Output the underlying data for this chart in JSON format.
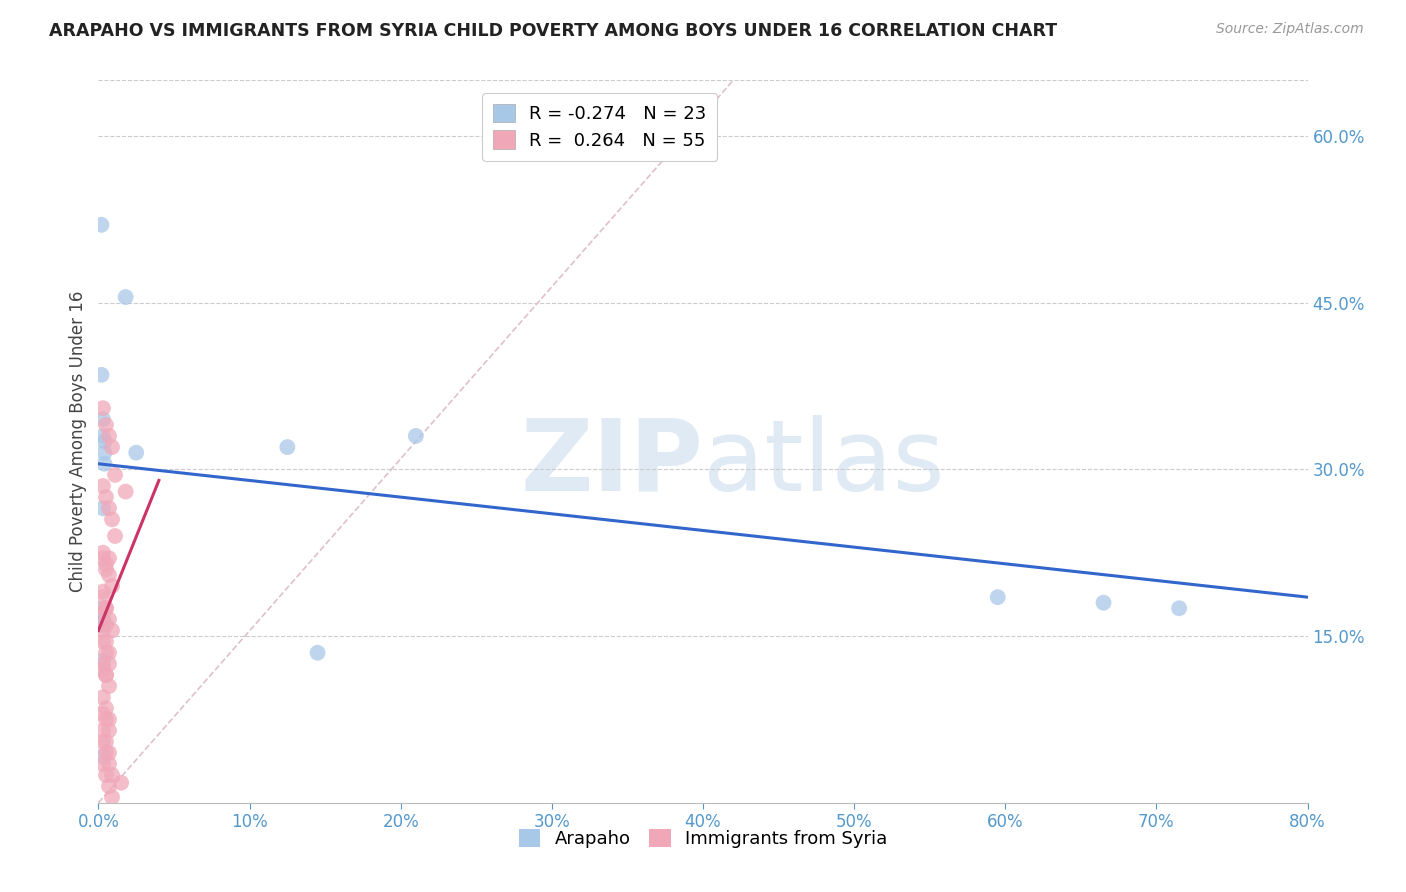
{
  "title": "ARAPAHO VS IMMIGRANTS FROM SYRIA CHILD POVERTY AMONG BOYS UNDER 16 CORRELATION CHART",
  "source": "Source: ZipAtlas.com",
  "ylabel": "Child Poverty Among Boys Under 16",
  "legend_labels": [
    "Arapaho",
    "Immigrants from Syria"
  ],
  "arapaho_R": -0.274,
  "arapaho_N": 23,
  "syria_R": 0.264,
  "syria_N": 55,
  "arapaho_color": "#a8c8e8",
  "syria_color": "#f0a8b8",
  "arapaho_line_color": "#3366cc",
  "syria_line_color": "#cc3366",
  "diagonal_color": "#e0c0c8",
  "xlim": [
    0.0,
    0.8
  ],
  "ylim": [
    0.0,
    0.65
  ],
  "xticks": [
    0.0,
    0.1,
    0.2,
    0.3,
    0.4,
    0.5,
    0.6,
    0.7,
    0.8
  ],
  "yticks_right": [
    0.15,
    0.3,
    0.45,
    0.6
  ],
  "watermark_zip": "ZIP",
  "watermark_atlas": "atlas",
  "arapaho_x": [
    0.002,
    0.018,
    0.002,
    0.003,
    0.003,
    0.004,
    0.004,
    0.025,
    0.004,
    0.125,
    0.21,
    0.003,
    0.003,
    0.003,
    0.003,
    0.003,
    0.003,
    0.003,
    0.595,
    0.665,
    0.715,
    0.003,
    0.145
  ],
  "arapaho_y": [
    0.52,
    0.455,
    0.385,
    0.345,
    0.33,
    0.325,
    0.315,
    0.315,
    0.305,
    0.32,
    0.33,
    0.265,
    0.175,
    0.165,
    0.165,
    0.16,
    0.16,
    0.128,
    0.185,
    0.18,
    0.175,
    0.042,
    0.135
  ],
  "syria_x": [
    0.003,
    0.005,
    0.007,
    0.009,
    0.011,
    0.003,
    0.005,
    0.007,
    0.009,
    0.011,
    0.003,
    0.005,
    0.007,
    0.009,
    0.003,
    0.005,
    0.007,
    0.009,
    0.003,
    0.005,
    0.007,
    0.003,
    0.005,
    0.007,
    0.003,
    0.005,
    0.007,
    0.003,
    0.005,
    0.007,
    0.003,
    0.005,
    0.007,
    0.003,
    0.005,
    0.007,
    0.003,
    0.005,
    0.007,
    0.009,
    0.003,
    0.005,
    0.003,
    0.005,
    0.003,
    0.005,
    0.003,
    0.005,
    0.007,
    0.003,
    0.005,
    0.007,
    0.009,
    0.015,
    0.018
  ],
  "syria_y": [
    0.355,
    0.34,
    0.33,
    0.32,
    0.295,
    0.285,
    0.275,
    0.265,
    0.255,
    0.24,
    0.225,
    0.215,
    0.205,
    0.195,
    0.185,
    0.175,
    0.165,
    0.155,
    0.145,
    0.135,
    0.125,
    0.155,
    0.145,
    0.135,
    0.125,
    0.115,
    0.105,
    0.095,
    0.085,
    0.075,
    0.19,
    0.175,
    0.22,
    0.065,
    0.055,
    0.045,
    0.035,
    0.025,
    0.015,
    0.005,
    0.22,
    0.21,
    0.17,
    0.16,
    0.12,
    0.115,
    0.08,
    0.075,
    0.065,
    0.055,
    0.045,
    0.035,
    0.025,
    0.018,
    0.28
  ],
  "arapaho_line_x": [
    0.0,
    0.8
  ],
  "arapaho_line_y": [
    0.305,
    0.185
  ],
  "syria_line_x_start": 0.0,
  "syria_line_x_end": 0.04,
  "syria_line_y_start": 0.155,
  "syria_line_y_end": 0.29
}
